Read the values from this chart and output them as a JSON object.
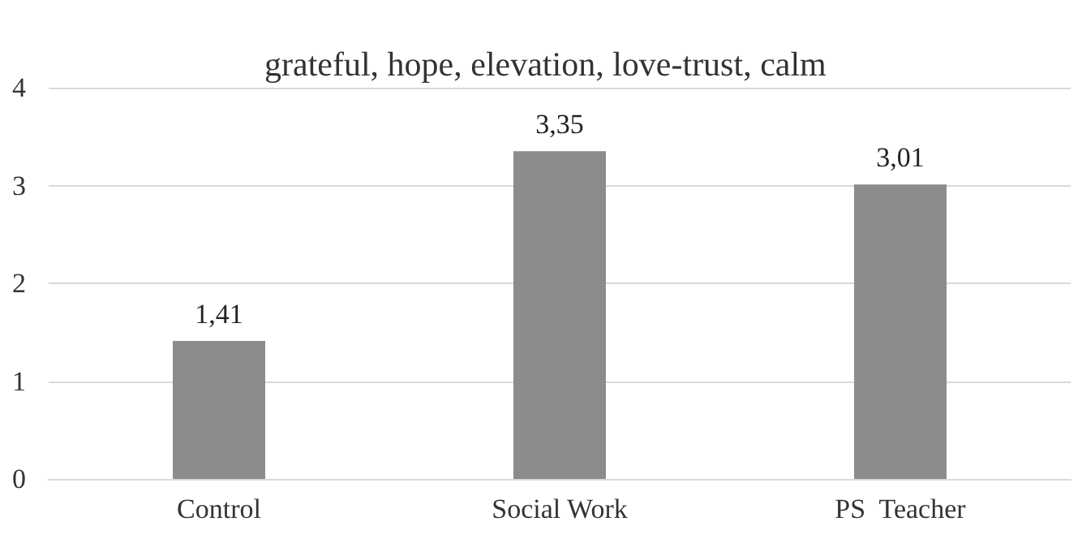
{
  "chart_data": {
    "type": "bar",
    "title": "grateful, hope, elevation, love-trust, calm",
    "categories": [
      "Control",
      "Social Work",
      "PS  Teacher"
    ],
    "values": [
      1.41,
      3.35,
      3.01
    ],
    "color": "#8c8c8c",
    "value_labels": [
      "1,41",
      "3,35",
      "3,01"
    ],
    "ylim": [
      0,
      4
    ],
    "yticks": [
      0,
      1,
      2,
      3,
      4
    ],
    "grid": "y"
  }
}
